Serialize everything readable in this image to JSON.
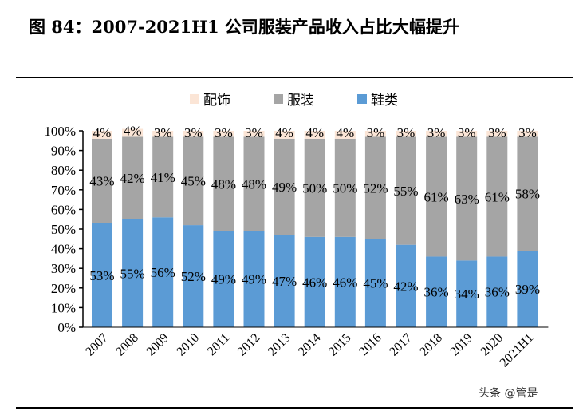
{
  "title": "图 84：2007-2021H1 公司服装产品收入占比大幅提升",
  "watermark": "头条 @管是",
  "chart_data": {
    "type": "bar",
    "stacked": true,
    "categories": [
      "2007",
      "2008",
      "2009",
      "2010",
      "2011",
      "2012",
      "2013",
      "2014",
      "2015",
      "2016",
      "2017",
      "2018",
      "2019",
      "2020",
      "2021H1"
    ],
    "series": [
      {
        "name": "鞋类",
        "color": "#5B9BD5",
        "values": [
          53,
          55,
          56,
          52,
          49,
          49,
          47,
          46,
          46,
          45,
          42,
          36,
          34,
          36,
          39
        ]
      },
      {
        "name": "服装",
        "color": "#A5A5A5",
        "values": [
          43,
          42,
          41,
          45,
          48,
          48,
          49,
          50,
          50,
          52,
          55,
          61,
          63,
          61,
          58
        ]
      },
      {
        "name": "配饰",
        "color": "#FBE5D6",
        "values": [
          4,
          4,
          3,
          3,
          3,
          3,
          4,
          4,
          4,
          3,
          3,
          3,
          3,
          3,
          3
        ]
      }
    ],
    "legend_order": [
      "配饰",
      "服装",
      "鞋类"
    ],
    "legend_position": "top",
    "ylim": [
      0,
      100
    ],
    "yticks": [
      "0%",
      "10%",
      "20%",
      "30%",
      "40%",
      "50%",
      "60%",
      "70%",
      "80%",
      "90%",
      "100%"
    ],
    "data_label_suffix": "%",
    "grid": false
  }
}
